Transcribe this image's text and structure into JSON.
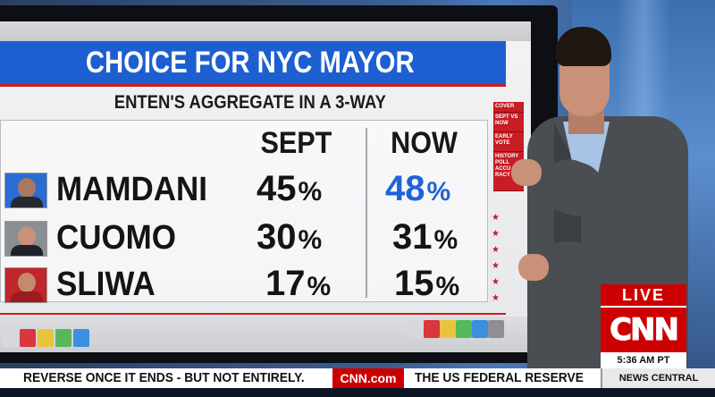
{
  "graphic": {
    "title": "CHOICE FOR NYC MAYOR",
    "subtitle": "ENTEN'S AGGREGATE IN A 3-WAY",
    "columns": [
      "SEPT",
      "NOW"
    ],
    "rows": [
      {
        "name": "MAMDANI",
        "sept": "45",
        "now": "48",
        "avatar_color": "#2a6bd4"
      },
      {
        "name": "CUOMO",
        "sept": "30",
        "now": "31",
        "avatar_color": "#8a8f96"
      },
      {
        "name": "SLIWA",
        "sept": "17",
        "now": "15",
        "avatar_color": "#c0262b"
      }
    ],
    "percent_sign": "%",
    "highlight_color": "#1f63d6"
  },
  "side_nav": {
    "items": [
      "COVER",
      "SEPT VS NOW",
      "EARLY VOTE",
      "HISTORY POLL ACCU RACY"
    ]
  },
  "broadcast": {
    "live_label": "LIVE",
    "network": "CNN",
    "time": "5:36 AM PT",
    "ticker_left": "REVERSE ONCE IT ENDS - BUT NOT ENTIRELY.",
    "ticker_brand": "CNN.com",
    "ticker_right": "THE US FEDERAL RESERVE",
    "show_name": "NEWS CENTRAL"
  },
  "colors": {
    "cnn_red": "#cc0000",
    "title_blue": "#1d5fd1",
    "accent_red": "#c61d23"
  }
}
